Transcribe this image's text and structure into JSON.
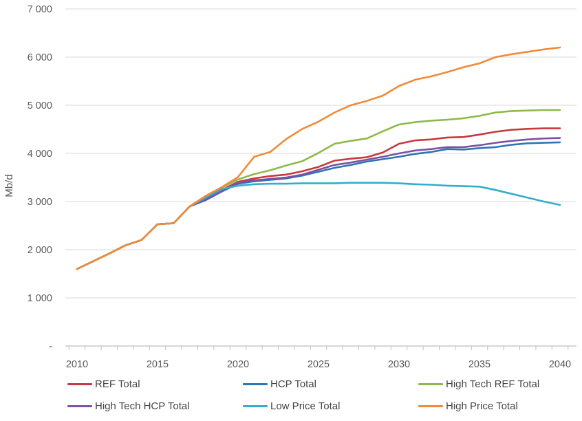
{
  "chart_data": {
    "type": "line",
    "title": "",
    "ylabel": "Mb/d",
    "xlabel": "",
    "ylim": [
      0,
      7000
    ],
    "grid": "horizontal",
    "legend_position": "bottom",
    "axis_colors": {
      "gridline": "#d9d9d9",
      "axis_line": "#bfbfbf",
      "tick": "#bfbfbf",
      "tick_text": "#595959"
    },
    "y_ticks": [
      {
        "value": 0,
        "label": "-"
      },
      {
        "value": 1000,
        "label": "1 000"
      },
      {
        "value": 2000,
        "label": "2 000"
      },
      {
        "value": 3000,
        "label": "3 000"
      },
      {
        "value": 4000,
        "label": "4 000"
      },
      {
        "value": 5000,
        "label": "5 000"
      },
      {
        "value": 6000,
        "label": "6 000"
      },
      {
        "value": 7000,
        "label": "7 000"
      }
    ],
    "x": [
      2010,
      2011,
      2012,
      2013,
      2014,
      2015,
      2016,
      2017,
      2018,
      2019,
      2020,
      2021,
      2022,
      2023,
      2024,
      2025,
      2026,
      2027,
      2028,
      2029,
      2030,
      2031,
      2032,
      2033,
      2034,
      2035,
      2036,
      2037,
      2038,
      2039,
      2040
    ],
    "x_tick_labels": [
      "2010",
      "2015",
      "2020",
      "2025",
      "2030",
      "2035",
      "2040"
    ],
    "series": [
      {
        "name": "REF Total",
        "color": "#c9383b",
        "values": [
          1600,
          1760,
          1920,
          2090,
          2200,
          2530,
          2550,
          2900,
          3060,
          3240,
          3410,
          3480,
          3530,
          3560,
          3630,
          3720,
          3850,
          3890,
          3920,
          4020,
          4200,
          4270,
          4290,
          4330,
          4340,
          4390,
          4450,
          4490,
          4510,
          4520,
          4520
        ]
      },
      {
        "name": "HCP Total",
        "color": "#2e75b6",
        "values": [
          1600,
          1760,
          1920,
          2090,
          2200,
          2530,
          2550,
          2900,
          3030,
          3210,
          3370,
          3420,
          3450,
          3480,
          3540,
          3620,
          3700,
          3760,
          3830,
          3880,
          3930,
          3990,
          4030,
          4090,
          4080,
          4110,
          4130,
          4180,
          4210,
          4220,
          4230
        ]
      },
      {
        "name": "High Tech REF Total",
        "color": "#8db94a",
        "values": [
          1600,
          1760,
          1920,
          2090,
          2200,
          2530,
          2550,
          2900,
          3110,
          3290,
          3460,
          3570,
          3650,
          3750,
          3840,
          4010,
          4200,
          4260,
          4310,
          4460,
          4600,
          4650,
          4680,
          4700,
          4730,
          4780,
          4850,
          4880,
          4890,
          4900,
          4900
        ]
      },
      {
        "name": "High Tech HCP Total",
        "color": "#7b52a0",
        "values": [
          1600,
          1760,
          1920,
          2090,
          2200,
          2530,
          2550,
          2900,
          3040,
          3220,
          3390,
          3440,
          3470,
          3500,
          3560,
          3660,
          3760,
          3810,
          3870,
          3930,
          4000,
          4060,
          4090,
          4130,
          4130,
          4170,
          4220,
          4260,
          4290,
          4310,
          4320
        ]
      },
      {
        "name": "Low Price Total",
        "color": "#31aecb",
        "values": [
          1600,
          1760,
          1920,
          2090,
          2200,
          2530,
          2550,
          2900,
          3080,
          3260,
          3330,
          3360,
          3370,
          3370,
          3380,
          3380,
          3380,
          3390,
          3390,
          3390,
          3380,
          3360,
          3350,
          3330,
          3320,
          3310,
          3240,
          3160,
          3080,
          3000,
          2930
        ]
      },
      {
        "name": "High Price Total",
        "color": "#f28a35",
        "values": [
          1600,
          1760,
          1920,
          2090,
          2200,
          2530,
          2550,
          2900,
          3120,
          3300,
          3510,
          3930,
          4030,
          4300,
          4510,
          4660,
          4850,
          5000,
          5090,
          5200,
          5400,
          5530,
          5600,
          5690,
          5790,
          5870,
          6000,
          6060,
          6110,
          6160,
          6200
        ]
      }
    ]
  }
}
